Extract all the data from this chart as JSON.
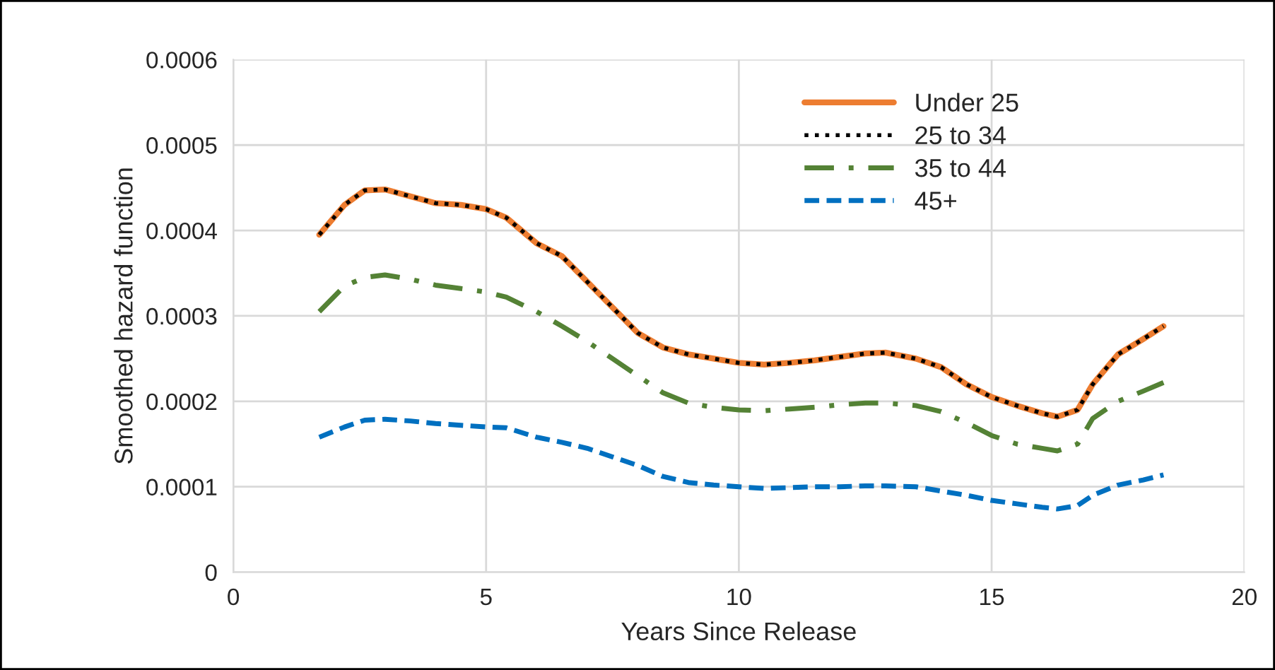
{
  "chart_data": {
    "type": "line",
    "xlabel": "Years Since Release",
    "ylabel": "Smoothed hazard function",
    "x": [
      1.7,
      2.2,
      2.6,
      3,
      3.5,
      4,
      4.5,
      5,
      5.4,
      6,
      6.5,
      7,
      7.5,
      8,
      8.5,
      9,
      9.5,
      10,
      10.5,
      11,
      11.5,
      12,
      12.5,
      12.9,
      13.5,
      14,
      14.5,
      15,
      15.5,
      16,
      16.3,
      16.7,
      17,
      17.5,
      18,
      18.4
    ],
    "series": [
      {
        "name": "Under 25",
        "color": "#ed7d31",
        "line_style": "solid",
        "values": [
          0.000395,
          0.00043,
          0.000447,
          0.000448,
          0.00044,
          0.000432,
          0.00043,
          0.000425,
          0.000415,
          0.000385,
          0.00037,
          0.00034,
          0.00031,
          0.00028,
          0.000263,
          0.000255,
          0.00025,
          0.000245,
          0.000243,
          0.000245,
          0.000248,
          0.000252,
          0.000256,
          0.000257,
          0.00025,
          0.00024,
          0.00022,
          0.000205,
          0.000195,
          0.000186,
          0.000182,
          0.00019,
          0.00022,
          0.000255,
          0.000273,
          0.000288
        ]
      },
      {
        "name": "25 to 34",
        "color": "#000000",
        "line_style": "dotted",
        "values": [
          0.000395,
          0.00043,
          0.000447,
          0.000448,
          0.00044,
          0.000432,
          0.00043,
          0.000425,
          0.000415,
          0.000385,
          0.00037,
          0.00034,
          0.00031,
          0.00028,
          0.000263,
          0.000255,
          0.00025,
          0.000245,
          0.000243,
          0.000245,
          0.000248,
          0.000252,
          0.000256,
          0.000257,
          0.00025,
          0.00024,
          0.00022,
          0.000205,
          0.000195,
          0.000186,
          0.000182,
          0.00019,
          0.00022,
          0.000255,
          0.000273,
          0.000288
        ]
      },
      {
        "name": "35 to 44",
        "color": "#548235",
        "line_style": "dashdot",
        "values": [
          0.000305,
          0.000335,
          0.000345,
          0.000348,
          0.000343,
          0.000336,
          0.000332,
          0.000328,
          0.000322,
          0.000305,
          0.000288,
          0.00027,
          0.00025,
          0.00023,
          0.00021,
          0.000198,
          0.000193,
          0.00019,
          0.000189,
          0.000191,
          0.000193,
          0.000196,
          0.000198,
          0.000198,
          0.000195,
          0.000188,
          0.000175,
          0.00016,
          0.00015,
          0.000145,
          0.000142,
          0.00015,
          0.00018,
          0.0002,
          0.000212,
          0.000222
        ]
      },
      {
        "name": "45+",
        "color": "#0070c0",
        "line_style": "dashed",
        "values": [
          0.000158,
          0.00017,
          0.000178,
          0.000179,
          0.000177,
          0.000174,
          0.000172,
          0.00017,
          0.000169,
          0.000158,
          0.000152,
          0.000145,
          0.000135,
          0.000125,
          0.000112,
          0.000105,
          0.000102,
          0.0001,
          9.8e-05,
          9.9e-05,
          0.0001,
          0.0001,
          0.000101,
          0.000101,
          0.0001,
          9.5e-05,
          9e-05,
          8.4e-05,
          8e-05,
          7.6e-05,
          7.4e-05,
          7.8e-05,
          9e-05,
          0.000102,
          0.000108,
          0.000114
        ]
      }
    ],
    "xlim": [
      0,
      20
    ],
    "xticks": [
      0,
      5,
      10,
      15,
      20
    ],
    "ylim": [
      0,
      0.0006
    ],
    "yticks": [
      0,
      0.0001,
      0.0002,
      0.0003,
      0.0004,
      0.0005,
      0.0006
    ],
    "grid": true,
    "legend": "top right"
  }
}
